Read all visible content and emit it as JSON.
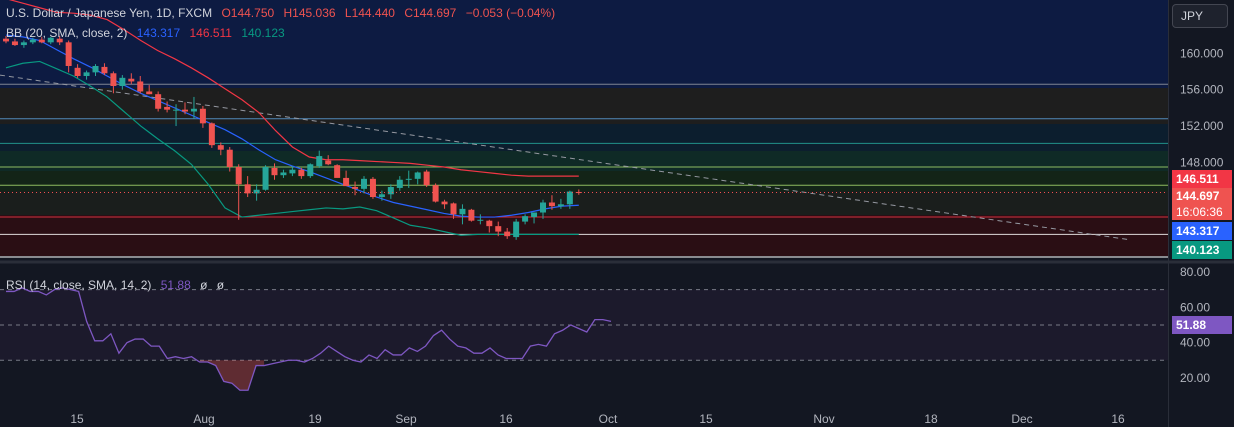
{
  "header": {
    "symbol": "U.S. Dollar / Japanese Yen, 1D, FXCM",
    "open": "O144.750",
    "high": "H145.036",
    "low": "L144.440",
    "close": "C144.697",
    "change": "−0.053 (−0.04%)",
    "bb_label": "BB (20, SMA, close, 2)",
    "bb_basis": "143.317",
    "bb_upper": "146.511",
    "bb_lower": "140.123",
    "rsi_label": "RSI (14, close, SMA, 14, 2)",
    "rsi_value": "51.88",
    "rsi_extra1": "ø",
    "rsi_extra2": "ø"
  },
  "currency": "JPY",
  "tags": {
    "bb_upper": "146.511",
    "last_price": "144.697",
    "countdown": "16:06:36",
    "bb_basis": "143.317",
    "bb_lower": "140.123",
    "rsi": "51.88"
  },
  "colors": {
    "up": "#26a69a",
    "down": "#ef5350",
    "basis": "#2962ff",
    "upper": "#f23645",
    "lower": "#089981",
    "rsi": "#7e57c2"
  },
  "chart_data": [
    {
      "type": "candlestick",
      "title": "U.S. Dollar / Japanese Yen, 1D, FXCM",
      "y_ticks": [
        "160.000",
        "156.000",
        "152.000",
        "148.000"
      ],
      "x_ticks": [
        "15",
        "Aug",
        "19",
        "Sep",
        "16",
        "Oct",
        "15",
        "Nov",
        "18",
        "Dec",
        "16"
      ],
      "ylim": [
        137.5,
        163.5
      ],
      "candles": [
        [
          161.6,
          161.9,
          161.1,
          161.3
        ],
        [
          161.3,
          161.6,
          160.8,
          160.9
        ],
        [
          160.9,
          161.4,
          160.6,
          161.2
        ],
        [
          161.2,
          161.7,
          161.0,
          161.5
        ],
        [
          161.5,
          161.8,
          161.1,
          161.2
        ],
        [
          161.2,
          161.8,
          161.0,
          161.7
        ],
        [
          161.6,
          161.9,
          160.9,
          161.2
        ],
        [
          161.2,
          161.4,
          157.9,
          158.6
        ],
        [
          158.4,
          158.8,
          157.3,
          157.5
        ],
        [
          157.5,
          158.1,
          157.1,
          157.9
        ],
        [
          157.9,
          158.8,
          157.5,
          158.6
        ],
        [
          158.5,
          158.9,
          157.6,
          157.8
        ],
        [
          157.8,
          158.0,
          155.6,
          156.4
        ],
        [
          156.4,
          157.6,
          156.0,
          157.3
        ],
        [
          157.2,
          157.8,
          156.6,
          156.9
        ],
        [
          156.9,
          157.5,
          155.6,
          155.8
        ],
        [
          155.8,
          156.5,
          155.5,
          155.5
        ],
        [
          155.5,
          155.8,
          153.6,
          153.9
        ],
        [
          154.1,
          154.7,
          153.5,
          153.8
        ],
        [
          153.8,
          154.4,
          152.0,
          153.8
        ],
        [
          153.8,
          154.6,
          153.3,
          153.6
        ],
        [
          153.6,
          155.2,
          152.8,
          153.9
        ],
        [
          153.9,
          154.2,
          151.8,
          152.3
        ],
        [
          152.3,
          152.4,
          149.6,
          149.9
        ],
        [
          149.9,
          150.2,
          148.8,
          149.4
        ],
        [
          149.4,
          149.7,
          147.0,
          147.5
        ],
        [
          147.5,
          147.8,
          141.7,
          145.6
        ],
        [
          145.6,
          146.5,
          144.2,
          144.6
        ],
        [
          144.6,
          145.6,
          143.8,
          145.0
        ],
        [
          145.0,
          147.7,
          144.9,
          147.5
        ],
        [
          147.4,
          147.9,
          146.1,
          146.6
        ],
        [
          146.6,
          147.2,
          146.3,
          146.9
        ],
        [
          146.8,
          147.6,
          146.5,
          147.2
        ],
        [
          147.2,
          147.4,
          146.2,
          146.5
        ],
        [
          146.5,
          147.9,
          146.3,
          147.8
        ],
        [
          147.6,
          149.3,
          147.4,
          148.7
        ],
        [
          148.2,
          148.8,
          147.7,
          147.8
        ],
        [
          147.7,
          147.8,
          146.4,
          146.3
        ],
        [
          146.3,
          147.1,
          145.5,
          145.4
        ],
        [
          145.3,
          145.9,
          144.4,
          145.1
        ],
        [
          145.1,
          146.5,
          144.6,
          146.2
        ],
        [
          146.2,
          146.4,
          144.0,
          144.2
        ],
        [
          144.2,
          144.9,
          143.8,
          144.5
        ],
        [
          144.5,
          145.6,
          144.0,
          145.3
        ],
        [
          145.2,
          146.5,
          144.9,
          146.1
        ],
        [
          146.1,
          147.1,
          145.2,
          146.2
        ],
        [
          146.2,
          147.0,
          145.6,
          146.9
        ],
        [
          147.0,
          147.2,
          145.3,
          145.5
        ],
        [
          145.5,
          145.7,
          143.6,
          143.7
        ],
        [
          143.7,
          143.9,
          142.9,
          143.4
        ],
        [
          143.5,
          143.6,
          141.8,
          142.3
        ],
        [
          142.3,
          143.4,
          141.2,
          142.9
        ],
        [
          142.8,
          142.9,
          141.5,
          141.6
        ],
        [
          141.6,
          142.3,
          141.2,
          141.7
        ],
        [
          141.6,
          141.7,
          140.3,
          141.0
        ],
        [
          141.0,
          141.5,
          139.9,
          140.4
        ],
        [
          140.4,
          140.8,
          139.6,
          139.9
        ],
        [
          139.8,
          141.8,
          139.5,
          141.5
        ],
        [
          141.5,
          142.3,
          141.2,
          142.1
        ],
        [
          142.0,
          142.3,
          141.3,
          142.5
        ],
        [
          142.5,
          143.9,
          141.8,
          143.6
        ],
        [
          143.6,
          144.4,
          142.8,
          143.2
        ],
        [
          143.2,
          144.0,
          142.9,
          143.4
        ],
        [
          143.4,
          144.9,
          142.9,
          144.8
        ],
        [
          144.75,
          145.036,
          144.44,
          144.697
        ]
      ],
      "bb_basis": [
        162,
        161.8,
        161.4,
        160.4,
        159.4,
        158.5,
        157.5,
        156.5,
        155.6,
        154.8,
        154.0,
        153.2,
        152.4,
        151.6,
        150.6,
        149.4,
        148.3,
        147.6,
        147.0,
        146.3,
        145.6,
        144.9,
        144.2,
        143.6,
        143.2,
        142.8,
        142.4,
        142.1,
        142.0,
        142.0,
        142.2,
        142.5,
        142.9,
        143.2,
        143.3
      ],
      "bb_upper": [
        166,
        165.5,
        165,
        164.5,
        164.4,
        164.2,
        163.7,
        162.6,
        161.4,
        160.3,
        159.4,
        158.4,
        157.3,
        156.1,
        154.9,
        153.5,
        151.5,
        149.7,
        148.6,
        148.3,
        148.3,
        148.2,
        148.1,
        148.0,
        147.9,
        147.7,
        147.5,
        147.2,
        147.0,
        146.8,
        146.6,
        146.5,
        146.5,
        146.5,
        146.5
      ],
      "bb_lower": [
        158.4,
        158.9,
        159.1,
        158.3,
        157.5,
        156.4,
        155.2,
        153.6,
        152.0,
        150.6,
        149.3,
        147.8,
        145.6,
        143.0,
        142.0,
        142.2,
        142.4,
        142.6,
        142.8,
        143.0,
        142.9,
        143.1,
        142.7,
        141.9,
        141.1,
        140.8,
        140.4,
        140.0,
        140.1,
        140.1,
        140.1,
        140.1,
        140.1,
        140.1,
        140.1
      ],
      "trendline": [
        [
          0,
          157.6
        ],
        [
          1130,
          139.5
        ]
      ],
      "levels": [
        156.6,
        152.8,
        150.1,
        147.5,
        145.5,
        142.0,
        140.1
      ],
      "last_price": 144.697
    },
    {
      "type": "line",
      "title": "RSI (14, close, SMA, 14, 2)",
      "y_ticks": [
        "80.00",
        "60.00",
        "40.00",
        "20.00"
      ],
      "ylim": [
        10,
        85
      ],
      "levels": [
        70,
        50,
        30
      ],
      "values": [
        69,
        69,
        71,
        69,
        69,
        67,
        70,
        71,
        70,
        69,
        52,
        41,
        41,
        45,
        34,
        40,
        42,
        42,
        38,
        38,
        31,
        32,
        31,
        32,
        29,
        29,
        27,
        18,
        17,
        13,
        13,
        27,
        27,
        28,
        29,
        30,
        30,
        29,
        31,
        34,
        38,
        35,
        32,
        30,
        29,
        33,
        31,
        36,
        33,
        33,
        37,
        35,
        38,
        44,
        47,
        42,
        38,
        37,
        34,
        34,
        37,
        33,
        31,
        31,
        31,
        38,
        39,
        38,
        45,
        47,
        50,
        48,
        46,
        53,
        53,
        52
      ]
    }
  ]
}
